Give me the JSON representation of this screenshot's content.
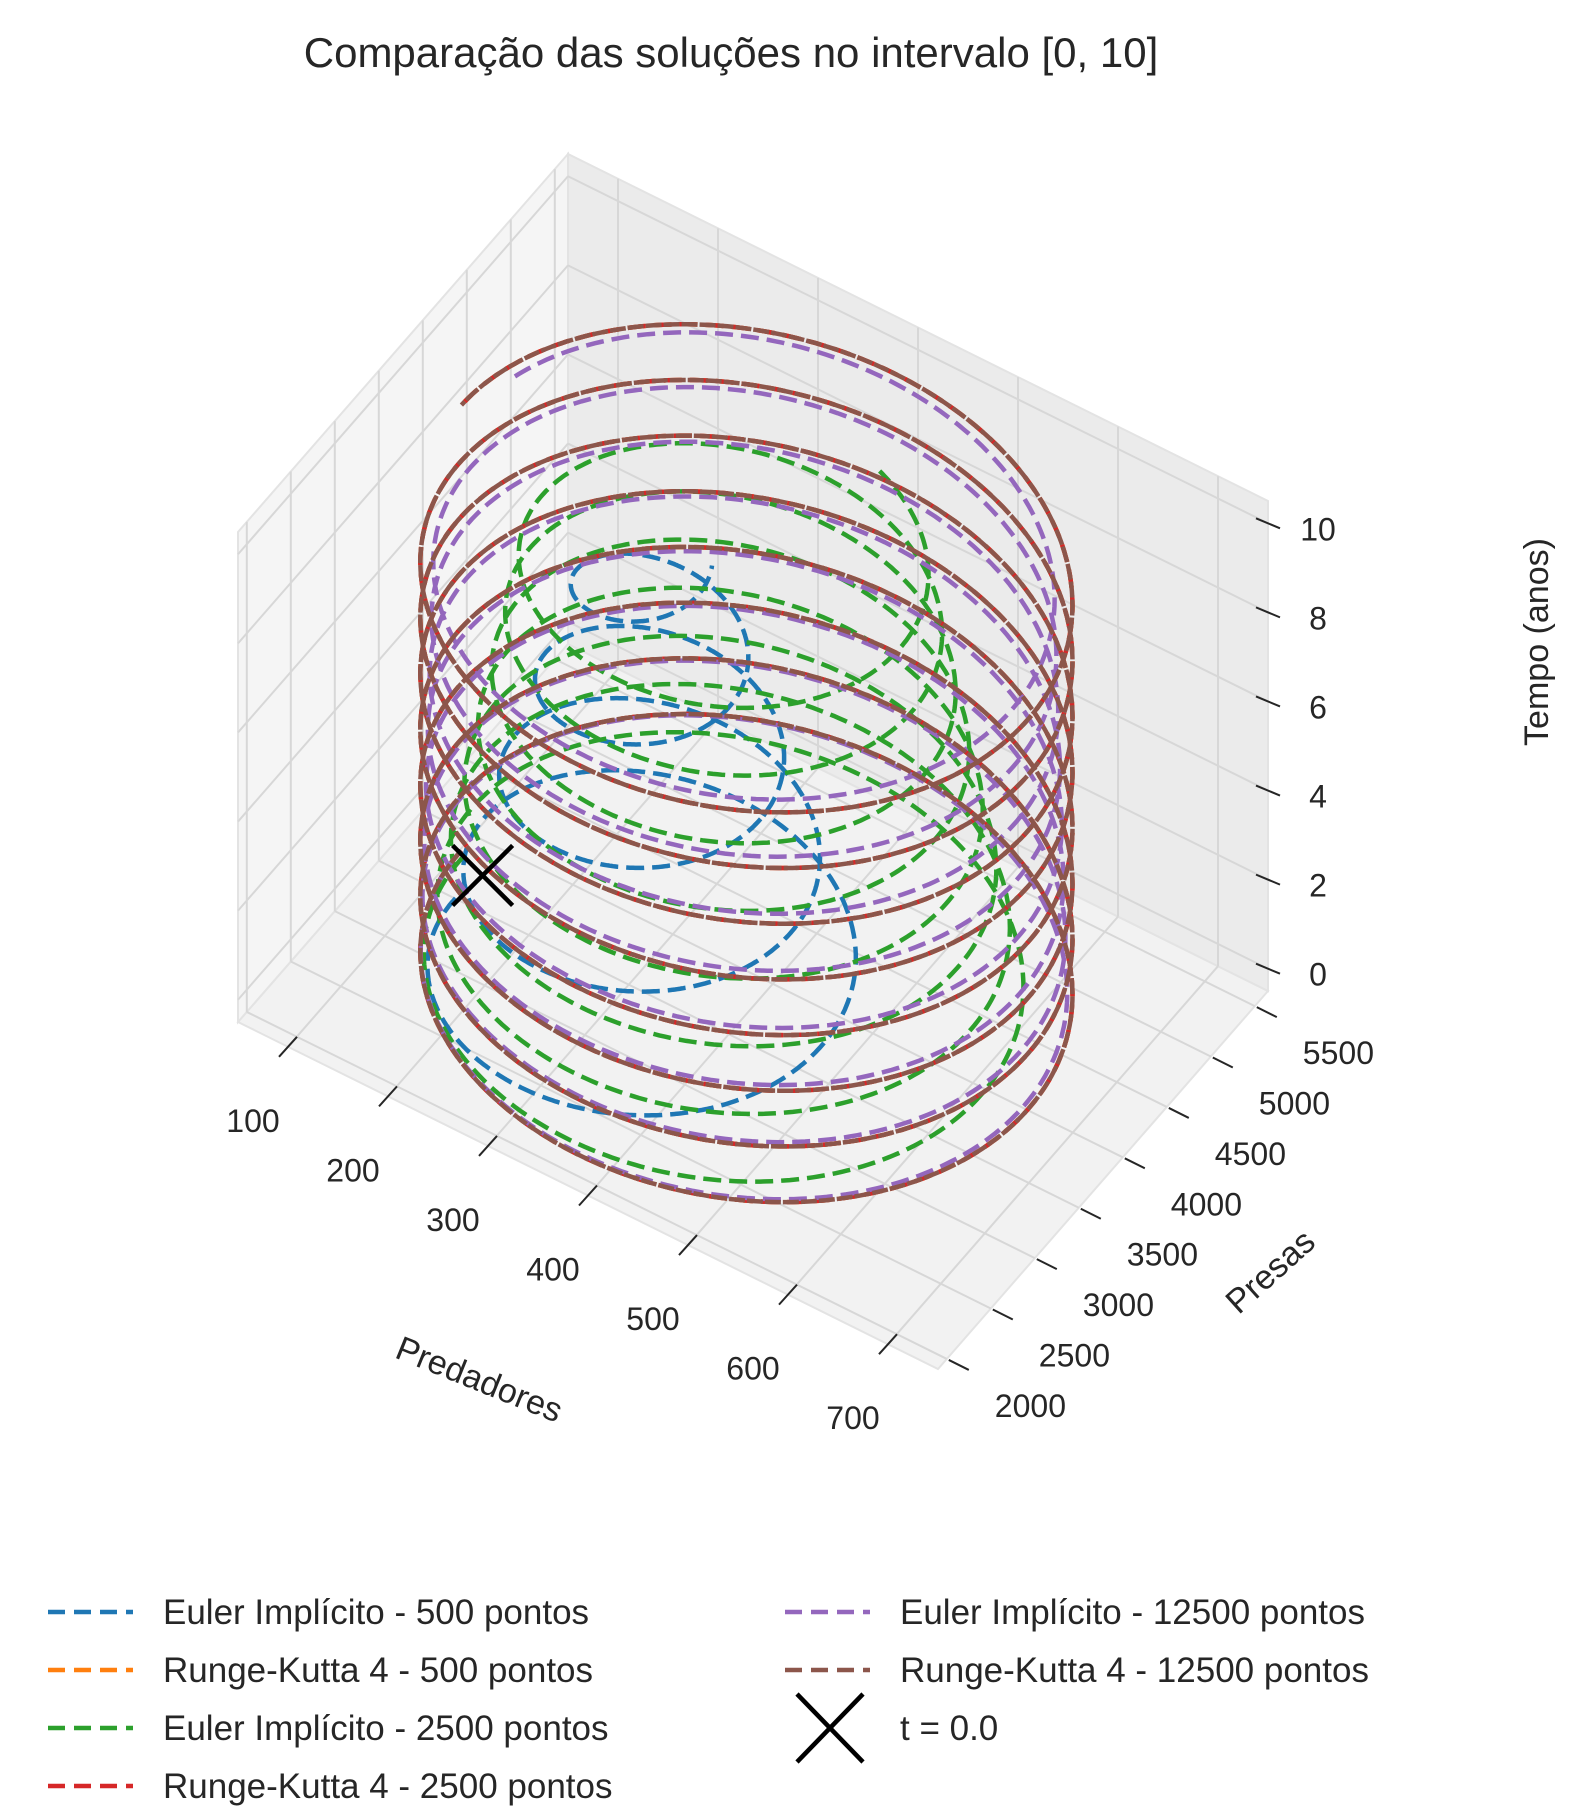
{
  "chart_data": {
    "type": "line",
    "projection": "3d",
    "title": "Comparação das soluções no intervalo [0, 10]",
    "xlabel": "Predadores",
    "ylabel": "Presas",
    "zlabel": "Tempo (anos)",
    "xlim": [
      50,
      750
    ],
    "ylim": [
      1900,
      5650
    ],
    "zlim": [
      -0.5,
      10.5
    ],
    "xticks": [
      "100",
      "200",
      "300",
      "400",
      "500",
      "600",
      "700"
    ],
    "yticks": [
      "2000",
      "2500",
      "3000",
      "3500",
      "4000",
      "4500",
      "5000",
      "5500"
    ],
    "zticks": [
      "0",
      "2",
      "4",
      "6",
      "8",
      "10"
    ],
    "grid": true,
    "legend": "lower-center-below-plot",
    "start_marker": {
      "label": "t = 0.0",
      "x": 145,
      "y": 3600,
      "z": 0,
      "marker": "x",
      "color": "#000000"
    },
    "series": [
      {
        "name": "Euler Implícito - 500 pontos",
        "color": "#1f77b4",
        "style": "dashed",
        "orbit": {
          "x_center": 335,
          "x_amp": [
            195,
            55
          ],
          "y_center": 3350,
          "y_amp": [
            1300,
            350
          ],
          "period": 2.2,
          "t_end": 10
        }
      },
      {
        "name": "Runge-Kutta 4 - 500 pontos",
        "color": "#ff7f0e",
        "style": "dashed",
        "orbit": {
          "x_center": 400,
          "x_amp": [
            285,
            285
          ],
          "y_center": 3700,
          "y_amp": [
            1800,
            1800
          ],
          "period": 1.25,
          "t_end": 10
        }
      },
      {
        "name": "Euler Implícito - 2500 pontos",
        "color": "#2ca02c",
        "style": "dashed",
        "orbit": {
          "x_center": 385,
          "x_amp": [
            265,
            175
          ],
          "y_center": 3650,
          "y_amp": [
            1700,
            1100
          ],
          "period": 1.3,
          "t_end": 10
        }
      },
      {
        "name": "Runge-Kutta 4 - 2500 pontos",
        "color": "#d62728",
        "style": "dashed",
        "orbit": {
          "x_center": 400,
          "x_amp": [
            285,
            285
          ],
          "y_center": 3700,
          "y_amp": [
            1800,
            1800
          ],
          "period": 1.25,
          "t_end": 10
        }
      },
      {
        "name": "Euler Implícito - 12500 pontos",
        "color": "#9467bd",
        "style": "dashed",
        "orbit": {
          "x_center": 398,
          "x_amp": [
            283,
            270
          ],
          "y_center": 3700,
          "y_amp": [
            1790,
            1720
          ],
          "period": 1.255,
          "t_end": 10
        }
      },
      {
        "name": "Runge-Kutta 4 - 12500 pontos",
        "color": "#8c564b",
        "style": "dashed",
        "orbit": {
          "x_center": 400,
          "x_amp": [
            285,
            285
          ],
          "y_center": 3700,
          "y_amp": [
            1800,
            1800
          ],
          "period": 1.25,
          "t_end": 10
        }
      }
    ]
  }
}
